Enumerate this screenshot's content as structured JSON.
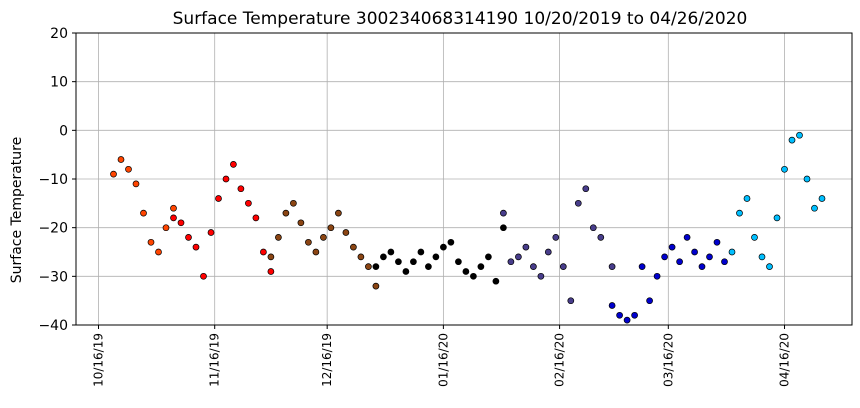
{
  "chart_data": {
    "type": "scatter",
    "title": "Surface Temperature 300234068314190  10/20/2019 to 04/26/2020",
    "xlabel": "",
    "ylabel": "Surface Temperature",
    "ylim": [
      -40,
      20
    ],
    "yticks": [
      "20",
      "10",
      "0",
      "−10",
      "−20",
      "−30",
      "−40"
    ],
    "xlim": [
      "2019-10-10",
      "2020-05-04"
    ],
    "xticks": [
      {
        "date": "2019-10-16",
        "label": "10/16/19"
      },
      {
        "date": "2019-11-16",
        "label": "11/16/19"
      },
      {
        "date": "2019-12-16",
        "label": "12/16/19"
      },
      {
        "date": "2020-01-16",
        "label": "01/16/20"
      },
      {
        "date": "2020-02-16",
        "label": "02/16/20"
      },
      {
        "date": "2020-03-16",
        "label": "03/16/20"
      },
      {
        "date": "2020-04-16",
        "label": "04/16/20"
      }
    ],
    "grid": true,
    "series": [
      {
        "color": "#ff4500",
        "x": [
          "2019-10-20",
          "2019-10-22",
          "2019-10-24",
          "2019-10-26",
          "2019-10-28",
          "2019-10-30",
          "2019-11-01",
          "2019-11-03",
          "2019-11-05"
        ],
        "values": [
          -9,
          -6,
          -8,
          -11,
          -17,
          -23,
          -25,
          -20,
          -16
        ]
      },
      {
        "color": "#ff0000",
        "x": [
          "2019-11-05",
          "2019-11-07",
          "2019-11-09",
          "2019-11-11",
          "2019-11-13",
          "2019-11-15",
          "2019-11-17",
          "2019-11-19",
          "2019-11-21",
          "2019-11-23",
          "2019-11-25",
          "2019-11-27",
          "2019-11-29",
          "2019-12-01"
        ],
        "values": [
          -18,
          -19,
          -22,
          -24,
          -30,
          -21,
          -14,
          -10,
          -7,
          -12,
          -15,
          -18,
          -25,
          -29
        ]
      },
      {
        "color": "#8b4513",
        "x": [
          "2019-12-01",
          "2019-12-03",
          "2019-12-05",
          "2019-12-07",
          "2019-12-09",
          "2019-12-11",
          "2019-12-13",
          "2019-12-15",
          "2019-12-17",
          "2019-12-19",
          "2019-12-21",
          "2019-12-23",
          "2019-12-25",
          "2019-12-27",
          "2019-12-29"
        ],
        "values": [
          -26,
          -22,
          -17,
          -15,
          -19,
          -23,
          -25,
          -22,
          -20,
          -17,
          -21,
          -24,
          -26,
          -28,
          -32
        ]
      },
      {
        "color": "#000000",
        "x": [
          "2019-12-29",
          "2019-12-31",
          "2020-01-02",
          "2020-01-04",
          "2020-01-06",
          "2020-01-08",
          "2020-01-10",
          "2020-01-12",
          "2020-01-14",
          "2020-01-16",
          "2020-01-18",
          "2020-01-20",
          "2020-01-22",
          "2020-01-24",
          "2020-01-26",
          "2020-01-28",
          "2020-01-30",
          "2020-02-01"
        ],
        "values": [
          -28,
          -26,
          -25,
          -27,
          -29,
          -27,
          -25,
          -28,
          -26,
          -24,
          -23,
          -27,
          -29,
          -30,
          -28,
          -26,
          -31,
          -20
        ]
      },
      {
        "color": "#483d8b",
        "x": [
          "2020-02-01",
          "2020-02-03",
          "2020-02-05",
          "2020-02-07",
          "2020-02-09",
          "2020-02-11",
          "2020-02-13",
          "2020-02-15",
          "2020-02-17",
          "2020-02-19",
          "2020-02-21",
          "2020-02-23",
          "2020-02-25",
          "2020-02-27",
          "2020-03-01"
        ],
        "values": [
          -17,
          -27,
          -26,
          -24,
          -28,
          -30,
          -25,
          -22,
          -28,
          -35,
          -15,
          -12,
          -20,
          -22,
          -28
        ]
      },
      {
        "color": "#0000cd",
        "x": [
          "2020-03-01",
          "2020-03-03",
          "2020-03-05",
          "2020-03-07",
          "2020-03-09",
          "2020-03-11",
          "2020-03-13",
          "2020-03-15",
          "2020-03-17",
          "2020-03-19",
          "2020-03-21",
          "2020-03-23",
          "2020-03-25",
          "2020-03-27",
          "2020-03-29",
          "2020-03-31"
        ],
        "values": [
          -36,
          -38,
          -39,
          -38,
          -28,
          -35,
          -30,
          -26,
          -24,
          -27,
          -22,
          -25,
          -28,
          -26,
          -23,
          -27
        ]
      },
      {
        "color": "#00bfff",
        "x": [
          "2020-04-02",
          "2020-04-04",
          "2020-04-06",
          "2020-04-08",
          "2020-04-10",
          "2020-04-12",
          "2020-04-14",
          "2020-04-16",
          "2020-04-18",
          "2020-04-20",
          "2020-04-22",
          "2020-04-24",
          "2020-04-26"
        ],
        "values": [
          -25,
          -17,
          -14,
          -22,
          -26,
          -28,
          -18,
          -8,
          -2,
          -1,
          -10,
          -16,
          -14
        ]
      }
    ]
  }
}
